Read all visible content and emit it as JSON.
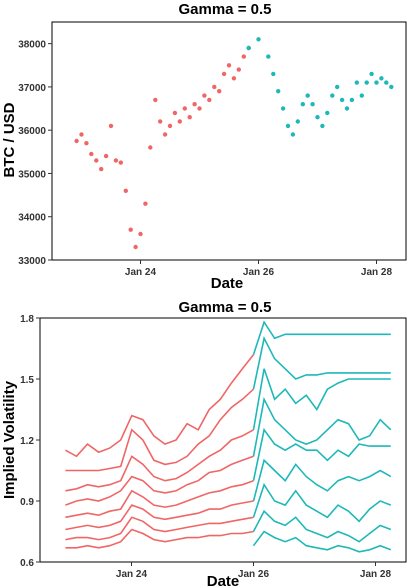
{
  "chart_data": [
    {
      "type": "scatter",
      "title": "Gamma =  0.5",
      "xlabel": "Date",
      "ylabel": "BTC / USD",
      "x_ticks": [
        "Jan 24",
        "Jan 26",
        "Jan 28"
      ],
      "y_ticks": [
        "33000",
        "34000",
        "35000",
        "36000",
        "37000",
        "38000"
      ],
      "ylim": [
        33000,
        38500
      ],
      "xlim": [
        "2022-01-22 12:00",
        "2022-01-28 12:00"
      ],
      "grid": false,
      "legend": "none",
      "series": [
        {
          "color": "#f06666",
          "points": [
            [
              "2022-01-22 22:00",
              35750
            ],
            [
              "2022-01-23 00:00",
              35900
            ],
            [
              "2022-01-23 02:00",
              35700
            ],
            [
              "2022-01-23 04:00",
              35450
            ],
            [
              "2022-01-23 06:00",
              35300
            ],
            [
              "2022-01-23 08:00",
              35100
            ],
            [
              "2022-01-23 10:00",
              35400
            ],
            [
              "2022-01-23 12:00",
              36100
            ],
            [
              "2022-01-23 14:00",
              35300
            ],
            [
              "2022-01-23 16:00",
              35250
            ],
            [
              "2022-01-23 18:00",
              34600
            ],
            [
              "2022-01-23 20:00",
              33700
            ],
            [
              "2022-01-23 22:00",
              33300
            ],
            [
              "2022-01-24 00:00",
              33600
            ],
            [
              "2022-01-24 02:00",
              34300
            ],
            [
              "2022-01-24 04:00",
              35600
            ],
            [
              "2022-01-24 06:00",
              36700
            ],
            [
              "2022-01-24 08:00",
              36200
            ],
            [
              "2022-01-24 10:00",
              35900
            ],
            [
              "2022-01-24 12:00",
              36100
            ],
            [
              "2022-01-24 14:00",
              36400
            ],
            [
              "2022-01-24 16:00",
              36200
            ],
            [
              "2022-01-24 18:00",
              36500
            ],
            [
              "2022-01-24 20:00",
              36300
            ],
            [
              "2022-01-24 22:00",
              36600
            ],
            [
              "2022-01-25 00:00",
              36500
            ],
            [
              "2022-01-25 02:00",
              36800
            ],
            [
              "2022-01-25 04:00",
              36700
            ],
            [
              "2022-01-25 06:00",
              37000
            ],
            [
              "2022-01-25 08:00",
              36900
            ],
            [
              "2022-01-25 10:00",
              37300
            ],
            [
              "2022-01-25 12:00",
              37500
            ],
            [
              "2022-01-25 14:00",
              37200
            ],
            [
              "2022-01-25 16:00",
              37400
            ],
            [
              "2022-01-25 18:00",
              37700
            ],
            [
              "2022-01-25 20:00",
              37900
            ]
          ]
        },
        {
          "color": "#1fb8b8",
          "points": [
            [
              "2022-01-25 20:00",
              37900
            ],
            [
              "2022-01-26 00:00",
              38100
            ],
            [
              "2022-01-26 04:00",
              37700
            ],
            [
              "2022-01-26 06:00",
              37300
            ],
            [
              "2022-01-26 08:00",
              36900
            ],
            [
              "2022-01-26 10:00",
              36500
            ],
            [
              "2022-01-26 12:00",
              36100
            ],
            [
              "2022-01-26 14:00",
              35900
            ],
            [
              "2022-01-26 16:00",
              36200
            ],
            [
              "2022-01-26 18:00",
              36600
            ],
            [
              "2022-01-26 20:00",
              36800
            ],
            [
              "2022-01-26 22:00",
              36600
            ],
            [
              "2022-01-27 00:00",
              36300
            ],
            [
              "2022-01-27 02:00",
              36100
            ],
            [
              "2022-01-27 04:00",
              36400
            ],
            [
              "2022-01-27 06:00",
              36800
            ],
            [
              "2022-01-27 08:00",
              37000
            ],
            [
              "2022-01-27 10:00",
              36700
            ],
            [
              "2022-01-27 12:00",
              36500
            ],
            [
              "2022-01-27 14:00",
              36700
            ],
            [
              "2022-01-27 16:00",
              37100
            ],
            [
              "2022-01-27 18:00",
              36800
            ],
            [
              "2022-01-27 20:00",
              37100
            ],
            [
              "2022-01-27 22:00",
              37300
            ],
            [
              "2022-01-28 00:00",
              37100
            ],
            [
              "2022-01-28 02:00",
              37200
            ],
            [
              "2022-01-28 04:00",
              37100
            ],
            [
              "2022-01-28 06:00",
              37000
            ]
          ]
        }
      ]
    },
    {
      "type": "line",
      "title": "Gamma =  0.5",
      "xlabel": "Date",
      "ylabel": "Implied Volatility",
      "x_ticks": [
        "Jan 24",
        "Jan 26",
        "Jan 28"
      ],
      "y_ticks": [
        "0.6",
        "0.9",
        "1.2",
        "1.5",
        "1.8"
      ],
      "ylim": [
        0.6,
        1.8
      ],
      "xlim": [
        "2022-01-22 12:00",
        "2022-01-28 12:00"
      ],
      "grid": false,
      "legend": "none",
      "series": [
        {
          "color": "#f06666",
          "start": "2022-01-22 22:00",
          "end": "2022-01-26 00:00",
          "lines": [
            [
              1.15,
              1.12,
              1.18,
              1.14,
              1.16,
              1.2,
              1.32,
              1.3,
              1.22,
              1.18,
              1.2,
              1.28,
              1.25,
              1.35,
              1.4,
              1.48,
              1.55,
              1.62
            ],
            [
              1.05,
              1.05,
              1.05,
              1.05,
              1.06,
              1.07,
              1.25,
              1.2,
              1.1,
              1.08,
              1.09,
              1.12,
              1.18,
              1.22,
              1.3,
              1.36,
              1.4,
              1.45
            ],
            [
              0.95,
              0.96,
              0.98,
              0.97,
              0.98,
              1.0,
              1.12,
              1.08,
              1.02,
              1.0,
              1.01,
              1.04,
              1.08,
              1.12,
              1.15,
              1.2,
              1.22,
              1.25
            ],
            [
              0.88,
              0.9,
              0.91,
              0.9,
              0.92,
              0.95,
              1.02,
              1.0,
              0.95,
              0.94,
              0.95,
              0.98,
              1.0,
              1.04,
              1.05,
              1.08,
              1.1,
              1.12
            ],
            [
              0.82,
              0.83,
              0.84,
              0.83,
              0.85,
              0.86,
              0.95,
              0.92,
              0.88,
              0.87,
              0.88,
              0.9,
              0.92,
              0.94,
              0.95,
              0.97,
              0.98,
              1.0
            ],
            [
              0.76,
              0.77,
              0.78,
              0.77,
              0.78,
              0.8,
              0.88,
              0.86,
              0.82,
              0.81,
              0.82,
              0.83,
              0.84,
              0.86,
              0.86,
              0.88,
              0.89,
              0.9
            ],
            [
              0.71,
              0.72,
              0.72,
              0.71,
              0.72,
              0.74,
              0.82,
              0.8,
              0.76,
              0.75,
              0.76,
              0.77,
              0.78,
              0.79,
              0.79,
              0.8,
              0.81,
              0.82
            ],
            [
              0.67,
              0.67,
              0.68,
              0.67,
              0.68,
              0.7,
              0.76,
              0.74,
              0.71,
              0.7,
              0.71,
              0.72,
              0.72,
              0.73,
              0.73,
              0.74,
              0.74,
              0.75
            ]
          ]
        },
        {
          "color": "#1fb8b8",
          "start": "2022-01-26 00:00",
          "end": "2022-01-28 06:00",
          "lines": [
            [
              1.62,
              1.78,
              1.7,
              1.72,
              1.72,
              1.72,
              1.72,
              1.72,
              1.72,
              1.72,
              1.72,
              1.72,
              1.72,
              1.72
            ],
            [
              1.45,
              1.7,
              1.6,
              1.55,
              1.5,
              1.52,
              1.52,
              1.53,
              1.53,
              1.53,
              1.53,
              1.53,
              1.53,
              1.53
            ],
            [
              1.25,
              1.55,
              1.4,
              1.45,
              1.38,
              1.42,
              1.35,
              1.45,
              1.48,
              1.5,
              1.5,
              1.5,
              1.5,
              1.5
            ],
            [
              1.12,
              1.4,
              1.3,
              1.25,
              1.2,
              1.18,
              1.2,
              1.25,
              1.3,
              1.28,
              1.2,
              1.22,
              1.3,
              1.25
            ],
            [
              1.0,
              1.25,
              1.18,
              1.15,
              1.18,
              1.15,
              1.15,
              1.1,
              1.15,
              1.12,
              1.18,
              1.17,
              1.17,
              1.17
            ],
            [
              0.9,
              1.1,
              1.05,
              1.0,
              1.08,
              1.02,
              0.98,
              0.95,
              1.0,
              1.02,
              1.0,
              1.02,
              1.05,
              1.02
            ],
            [
              0.82,
              0.98,
              0.9,
              0.88,
              0.95,
              0.88,
              0.85,
              0.82,
              0.88,
              0.85,
              0.8,
              0.86,
              0.9,
              0.88
            ],
            [
              0.75,
              0.85,
              0.8,
              0.78,
              0.82,
              0.76,
              0.74,
              0.72,
              0.75,
              0.73,
              0.7,
              0.74,
              0.78,
              0.76
            ],
            [
              0.68,
              0.75,
              0.72,
              0.7,
              0.72,
              0.68,
              0.67,
              0.66,
              0.68,
              0.67,
              0.65,
              0.66,
              0.68,
              0.66
            ]
          ]
        }
      ]
    }
  ]
}
